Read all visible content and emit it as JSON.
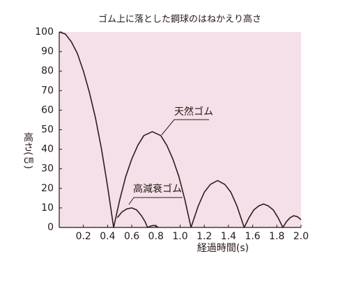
{
  "chart_data": {
    "type": "line",
    "title": "ゴム上に落とした鋼球のはねかえり高さ",
    "y_label": "高さ(㎝)",
    "x_label": "経過時間(s)",
    "xlim": [
      0,
      2
    ],
    "ylim": [
      0,
      100
    ],
    "xticks": [
      0.2,
      0.4,
      0.6,
      0.8,
      {
        "value": 1,
        "label": "1.0"
      },
      1.2,
      1.4,
      1.6,
      1.8,
      {
        "value": 2,
        "label": "2.0"
      }
    ],
    "yticks": [
      0,
      10,
      20,
      30,
      40,
      50,
      60,
      70,
      80,
      90,
      100
    ],
    "background": "#f5dfe8",
    "series": [
      {
        "name": "天然ゴム",
        "color": "#2b1d1d",
        "x": [
          0,
          0.05,
          0.1,
          0.15,
          0.2,
          0.25,
          0.3,
          0.35,
          0.4,
          0.45,
          0.5,
          0.55,
          0.6,
          0.65,
          0.7,
          0.77,
          0.84,
          0.89,
          0.94,
          0.99,
          1.04,
          1.09,
          1.15,
          1.2,
          1.25,
          1.31,
          1.37,
          1.42,
          1.47,
          1.53,
          1.57,
          1.61,
          1.65,
          1.69,
          1.73,
          1.77,
          1.81,
          1.85,
          1.88,
          1.91,
          1.94,
          1.97,
          2.0
        ],
        "values": [
          100,
          99,
          95,
          89,
          80,
          69,
          56,
          40,
          21,
          0,
          14,
          26,
          35,
          42,
          47,
          49,
          47,
          42,
          35,
          26,
          14,
          0,
          11,
          18,
          22,
          24,
          22,
          18,
          11,
          0,
          5,
          9,
          11,
          12,
          11,
          9,
          5,
          0,
          3,
          5,
          6,
          5.5,
          4
        ]
      },
      {
        "name": "高減衰ゴム",
        "color": "#2b1d1d",
        "x": [
          0.48,
          0.52,
          0.56,
          0.6,
          0.64,
          0.68,
          0.71,
          0.73,
          0.76,
          0.78,
          0.8,
          0.82
        ],
        "values": [
          5,
          8,
          9.5,
          10,
          9,
          6,
          3,
          0,
          0.8,
          1,
          0.8,
          0
        ]
      }
    ]
  }
}
